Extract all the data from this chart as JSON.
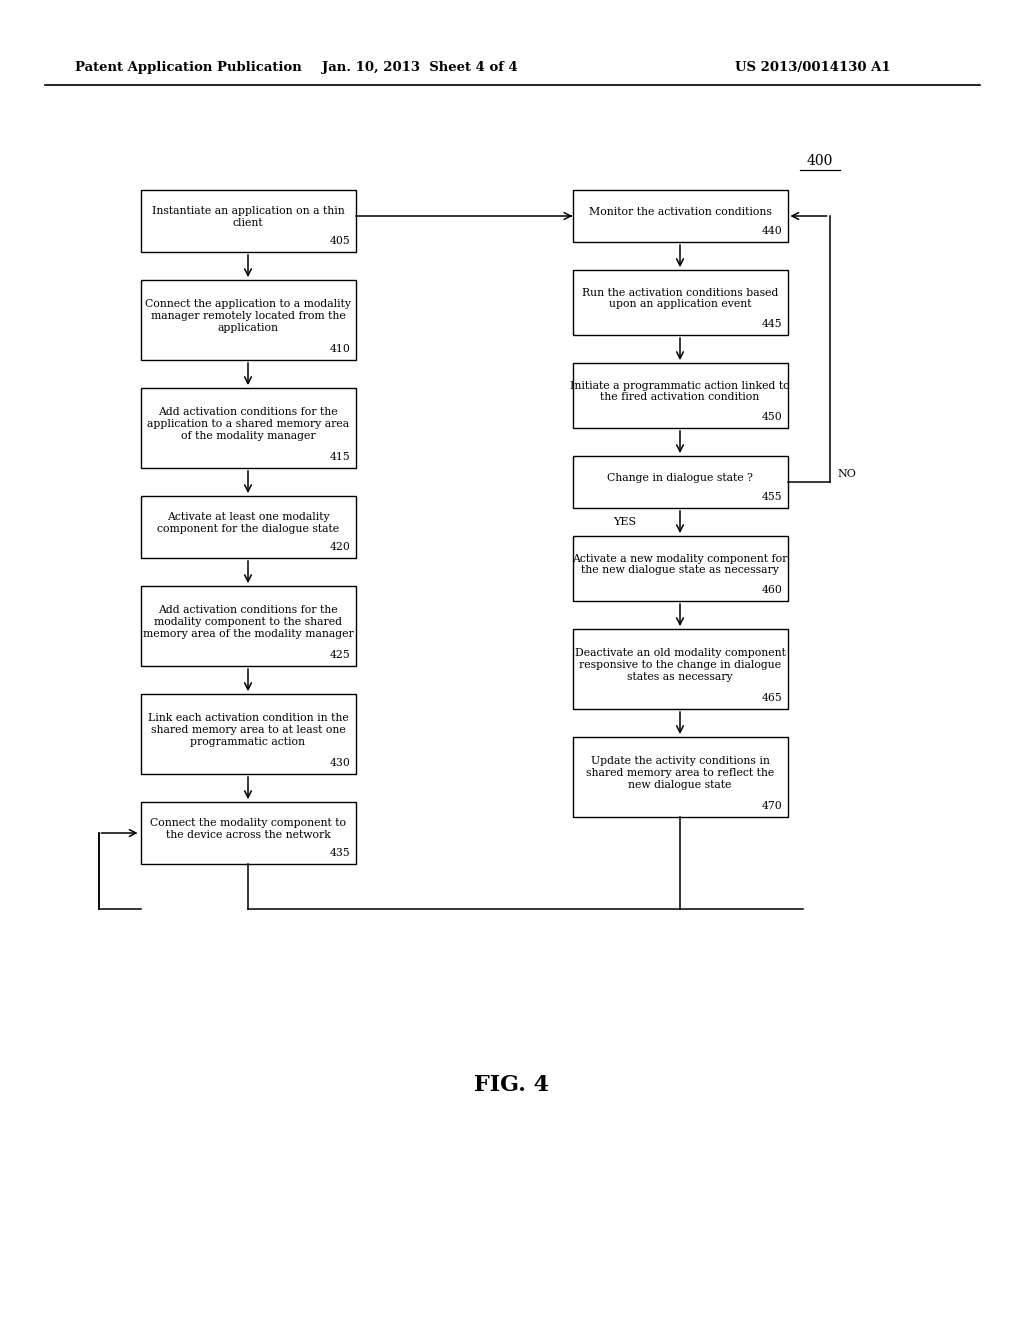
{
  "bg_color": "#ffffff",
  "header_left": "Patent Application Publication",
  "header_mid": "Jan. 10, 2013  Sheet 4 of 4",
  "header_right": "US 2013/0014130 A1",
  "fig_label": "FIG. 4",
  "diagram_label": "400",
  "left_boxes": [
    {
      "label": "Instantiate an application on a thin\nclient",
      "num": "405"
    },
    {
      "label": "Connect the application to a modality\nmanager remotely located from the\napplication",
      "num": "410"
    },
    {
      "label": "Add activation conditions for the\napplication to a shared memory area\nof the modality manager",
      "num": "415"
    },
    {
      "label": "Activate at least one modality\ncomponent for the dialogue state",
      "num": "420"
    },
    {
      "label": "Add activation conditions for the\nmodality component to the shared\nmemory area of the modality manager",
      "num": "425"
    },
    {
      "label": "Link each activation condition in the\nshared memory area to at least one\nprogrammatic action",
      "num": "430"
    },
    {
      "label": "Connect the modality component to\nthe device across the network",
      "num": "435"
    }
  ],
  "right_boxes": [
    {
      "label": "Monitor the activation conditions",
      "num": "440"
    },
    {
      "label": "Run the activation conditions based\nupon an application event",
      "num": "445"
    },
    {
      "label": "Initiate a programmatic action linked to\nthe fired activation condition",
      "num": "450"
    },
    {
      "label": "Change in dialogue state ?",
      "num": "455"
    },
    {
      "label": "Activate a new modality component for\nthe new dialogue state as necessary",
      "num": "460"
    },
    {
      "label": "Deactivate an old modality component\nresponsive to the change in dialogue\nstates as necessary",
      "num": "465"
    },
    {
      "label": "Update the activity conditions in\nshared memory area to reflect the\nnew dialogue state",
      "num": "470"
    }
  ]
}
